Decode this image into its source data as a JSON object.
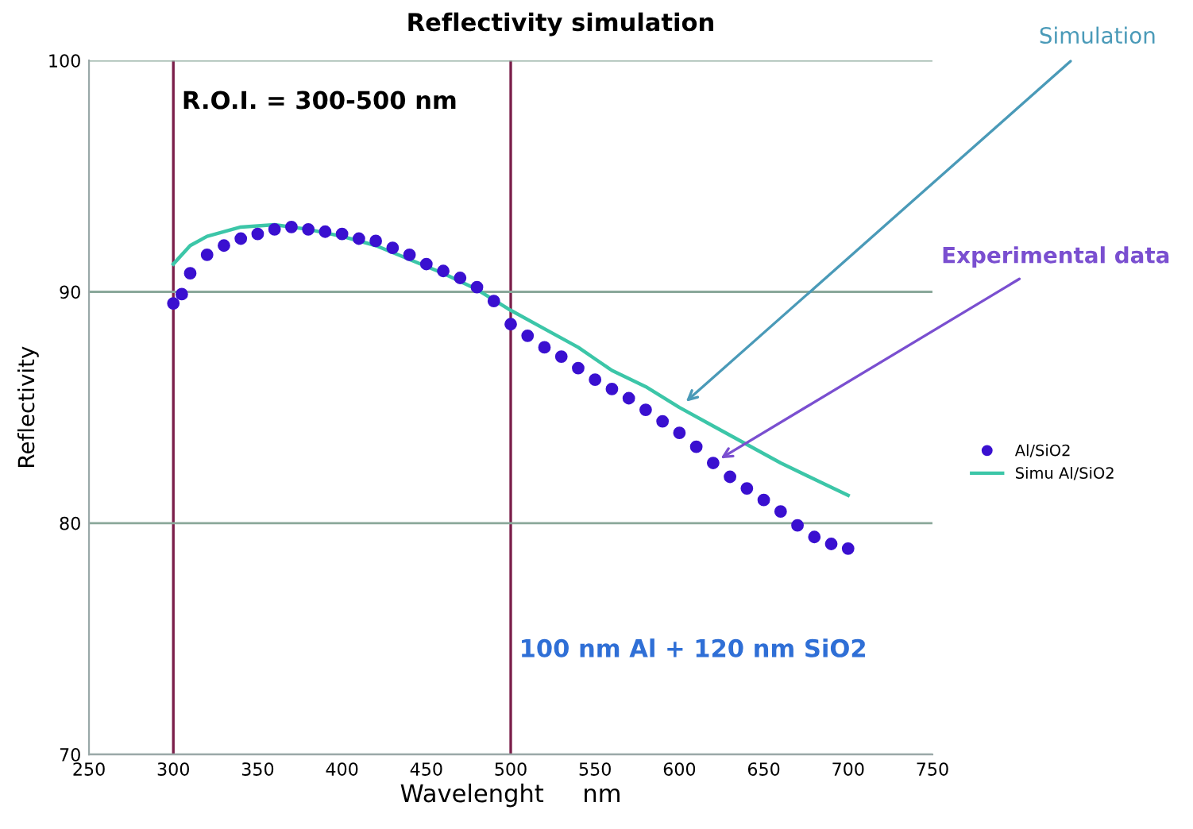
{
  "chart_data": {
    "type": "line",
    "title": "Reflectivity simulation",
    "xlabel": "Wavelenght     nm",
    "ylabel": "Reflectivity",
    "xlim": [
      250,
      750
    ],
    "xticks": [
      250,
      300,
      350,
      400,
      450,
      500,
      550,
      600,
      650,
      700,
      750
    ],
    "ylim": [
      70,
      100
    ],
    "yticks": [
      70,
      80,
      90,
      100
    ],
    "grid": "y",
    "legend": "right",
    "series": [
      {
        "name": "Al/SiO2",
        "type": "scatter",
        "marker": "circle",
        "color": "#3a10d0",
        "x": [
          300,
          305,
          310,
          320,
          330,
          340,
          350,
          360,
          370,
          380,
          390,
          400,
          410,
          420,
          430,
          440,
          450,
          460,
          470,
          480,
          490,
          500,
          510,
          520,
          530,
          540,
          550,
          560,
          570,
          580,
          590,
          600,
          610,
          620,
          630,
          640,
          650,
          660,
          670,
          680,
          690,
          700
        ],
        "values": [
          89.5,
          89.9,
          90.8,
          91.6,
          92.0,
          92.3,
          92.5,
          92.7,
          92.8,
          92.7,
          92.6,
          92.5,
          92.3,
          92.2,
          91.9,
          91.6,
          91.2,
          90.9,
          90.6,
          90.2,
          89.6,
          88.6,
          88.1,
          87.6,
          87.2,
          86.7,
          86.2,
          85.8,
          85.4,
          84.9,
          84.4,
          83.9,
          83.3,
          82.6,
          82.0,
          81.5,
          81.0,
          80.5,
          79.9,
          79.4,
          79.1,
          78.9
        ]
      },
      {
        "name": "Simu Al/SiO2",
        "line_style": "solid",
        "color": "#3cc6a8",
        "x": [
          300,
          310,
          320,
          340,
          360,
          380,
          400,
          420,
          440,
          460,
          480,
          500,
          520,
          540,
          550,
          560,
          580,
          600,
          620,
          640,
          660,
          680,
          700
        ],
        "values": [
          91.2,
          92.0,
          92.4,
          92.8,
          92.9,
          92.7,
          92.4,
          92.0,
          91.4,
          90.8,
          90.1,
          89.2,
          88.4,
          87.6,
          87.1,
          86.6,
          85.9,
          85.0,
          84.2,
          83.4,
          82.6,
          81.9,
          81.2
        ]
      }
    ],
    "ref_lines": [
      {
        "axis": "x",
        "value": 300,
        "color": "#7b1f4a"
      },
      {
        "axis": "x",
        "value": 500,
        "color": "#7b1f4a"
      }
    ],
    "annotations": [
      "R.O.I. = 300-500 nm",
      {
        "text": "Simulation",
        "x": 600,
        "y": 85.0
      },
      {
        "text": "Experimental data",
        "x": 620,
        "y": 82.6
      },
      "100 nm Al + 120 nm SiO2"
    ]
  }
}
